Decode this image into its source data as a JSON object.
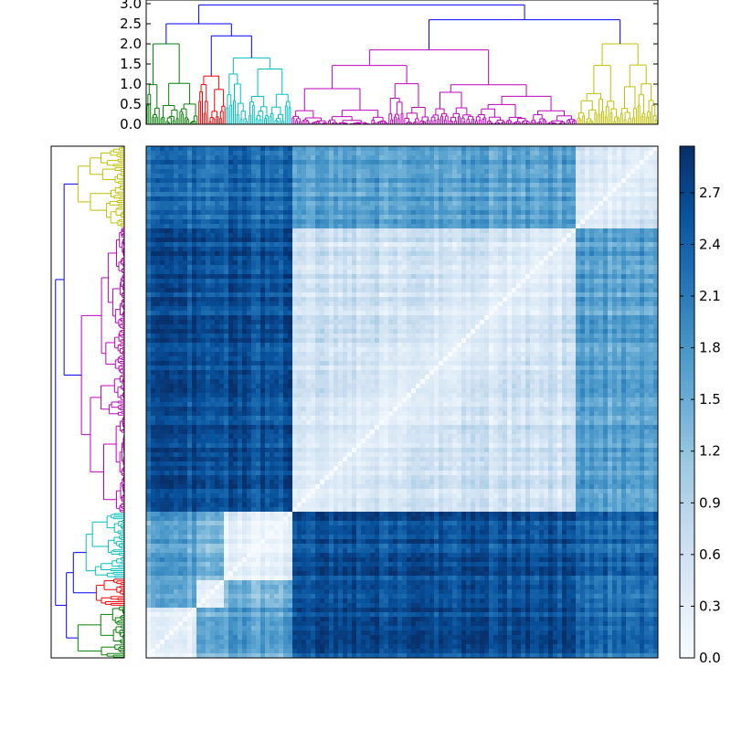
{
  "chart_data": {
    "type": "heatmap",
    "title": "",
    "colormap": "Blues",
    "colormap_range": [
      0.0,
      2.97
    ],
    "matrix_size_approx": 300,
    "top_dendrogram": {
      "ylim": [
        0,
        3.0
      ],
      "yticks": [
        "0.0",
        "0.5",
        "1.0",
        "1.5",
        "2.0",
        "2.5",
        "3.0"
      ],
      "cluster_order": [
        "green",
        "red",
        "cyan",
        "magenta",
        "yellow"
      ],
      "cluster_colors": {
        "green": "#008000",
        "red": "#ff0000",
        "cyan": "#00bfbf",
        "magenta": "#bf00bf",
        "yellow": "#bfbf00",
        "link": "#0000ff"
      },
      "cluster_heights": {
        "green": 2.0,
        "red": 1.2,
        "cyan": 1.65,
        "magenta": 1.85,
        "yellow": 2.0
      },
      "merge_heights": {
        "green+red": 2.5,
        "cyan+(green,red)": 2.5,
        "red+cyan": 2.2,
        "magenta+yellow": 2.6,
        "root": 2.97
      }
    },
    "left_dendrogram": {
      "orientation": "left",
      "cluster_order_top_to_bottom": [
        "yellow",
        "magenta",
        "cyan",
        "red",
        "green"
      ]
    },
    "colorbar": {
      "ticks": [
        "0.0",
        "0.3",
        "0.6",
        "0.9",
        "1.2",
        "1.5",
        "1.8",
        "2.1",
        "2.4",
        "2.7"
      ],
      "range": [
        0.0,
        2.97
      ]
    }
  }
}
